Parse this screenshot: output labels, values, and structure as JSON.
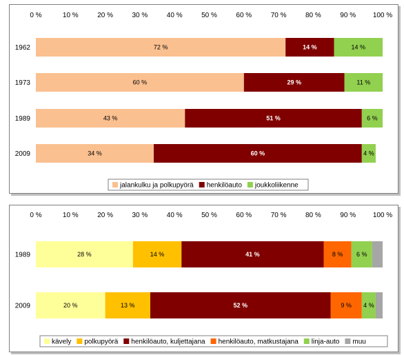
{
  "chart_data": [
    {
      "type": "bar",
      "orientation": "horizontal",
      "stacked": true,
      "percent": true,
      "xlim": [
        0,
        100
      ],
      "xticks": [
        "0 %",
        "10 %",
        "20 %",
        "30 %",
        "40 %",
        "50 %",
        "60 %",
        "70 %",
        "80 %",
        "90 %",
        "100 %"
      ],
      "categories": [
        "1962",
        "1973",
        "1989",
        "2009"
      ],
      "series": [
        {
          "name": "jalankulku ja polkupyörä",
          "color": "#fac090",
          "label_color": "#000000",
          "label_bold": false,
          "values": [
            72,
            60,
            43,
            34
          ],
          "labels": [
            "72 %",
            "60 %",
            "43 %",
            "34 %"
          ]
        },
        {
          "name": "henkilöauto",
          "color": "#800000",
          "label_color": "#ffffff",
          "label_bold": true,
          "values": [
            14,
            29,
            51,
            60
          ],
          "labels": [
            "14 %",
            "29 %",
            "51 %",
            "60 %"
          ]
        },
        {
          "name": "joukkoliikenne",
          "color": "#92d050",
          "label_color": "#000000",
          "label_bold": false,
          "values": [
            14,
            11,
            6,
            4
          ],
          "labels": [
            "14 %",
            "11 %",
            "6 %",
            "4 %"
          ]
        }
      ],
      "legend": "bottom",
      "grid": false
    },
    {
      "type": "bar",
      "orientation": "horizontal",
      "stacked": true,
      "percent": true,
      "xlim": [
        0,
        100
      ],
      "xticks": [
        "0 %",
        "10 %",
        "20 %",
        "30 %",
        "40 %",
        "50 %",
        "60 %",
        "70 %",
        "80 %",
        "90 %",
        "100 %"
      ],
      "categories": [
        "1989",
        "2009"
      ],
      "series": [
        {
          "name": "kävely",
          "color": "#ffff99",
          "label_color": "#000000",
          "label_bold": false,
          "values": [
            28,
            20
          ],
          "labels": [
            "28 %",
            "20 %"
          ]
        },
        {
          "name": "polkupyörä",
          "color": "#ffc000",
          "label_color": "#000000",
          "label_bold": false,
          "values": [
            14,
            13
          ],
          "labels": [
            "14 %",
            "13 %"
          ]
        },
        {
          "name": "henkilöauto, kuljettajana",
          "color": "#800000",
          "label_color": "#ffffff",
          "label_bold": true,
          "values": [
            41,
            52
          ],
          "labels": [
            "41 %",
            "52 %"
          ]
        },
        {
          "name": "henkilöauto, matkustajana",
          "color": "#ff6600",
          "label_color": "#000000",
          "label_bold": false,
          "values": [
            8,
            9
          ],
          "labels": [
            "8 %",
            "9 %"
          ]
        },
        {
          "name": "linja-auto",
          "color": "#92d050",
          "label_color": "#000000",
          "label_bold": false,
          "values": [
            6,
            4
          ],
          "labels": [
            "6 %",
            "4 %"
          ]
        },
        {
          "name": "muu",
          "color": "#a6a6a6",
          "label_color": "#000000",
          "label_bold": false,
          "values": [
            3,
            2
          ],
          "labels": [
            "",
            ""
          ]
        }
      ],
      "legend": "bottom",
      "grid": false
    }
  ]
}
